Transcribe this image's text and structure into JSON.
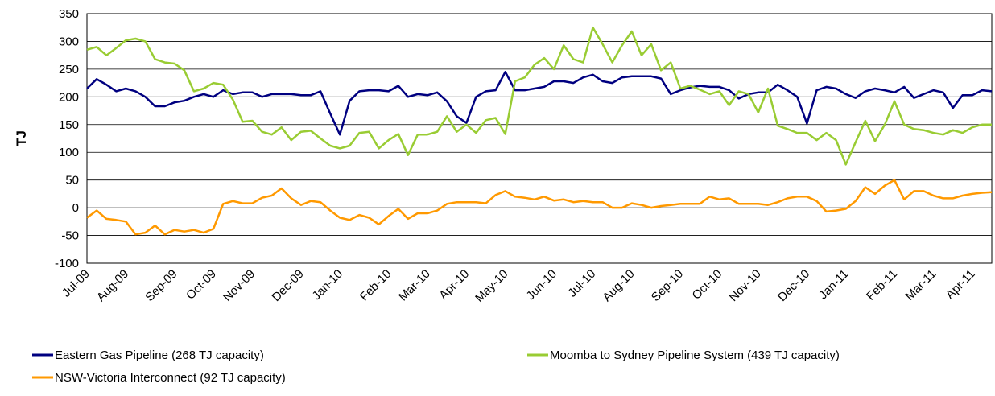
{
  "chart_data": {
    "type": "line",
    "ylabel": "TJ",
    "categories": [
      "Jul-09",
      null,
      null,
      null,
      "Aug-09",
      null,
      null,
      null,
      null,
      "Sep-09",
      null,
      null,
      null,
      "Oct-09",
      null,
      null,
      null,
      "Nov-09",
      null,
      null,
      null,
      null,
      "Dec-09",
      null,
      null,
      null,
      "Jan-10",
      null,
      null,
      null,
      null,
      "Feb-10",
      null,
      null,
      null,
      "Mar-10",
      null,
      null,
      null,
      "Apr-10",
      null,
      null,
      null,
      "May-10",
      null,
      null,
      null,
      null,
      "Jun-10",
      null,
      null,
      null,
      "Jul-10",
      null,
      null,
      null,
      "Aug-10",
      null,
      null,
      null,
      null,
      "Sep-10",
      null,
      null,
      null,
      "Oct-10",
      null,
      null,
      null,
      "Nov-10",
      null,
      null,
      null,
      null,
      "Dec-10",
      null,
      null,
      null,
      "Jan-11",
      null,
      null,
      null,
      null,
      "Feb-11",
      null,
      null,
      null,
      "Mar-11",
      null,
      null,
      null,
      "Apr-11",
      null,
      null
    ],
    "series": [
      {
        "name": "Eastern Gas Pipeline (268 TJ capacity)",
        "color": "#000080",
        "values": [
          215,
          232,
          222,
          210,
          215,
          210,
          200,
          183,
          183,
          190,
          193,
          200,
          205,
          200,
          212,
          205,
          208,
          208,
          200,
          205,
          205,
          205,
          203,
          203,
          210,
          170,
          132,
          193,
          210,
          212,
          212,
          210,
          220,
          200,
          205,
          203,
          208,
          192,
          165,
          153,
          200,
          210,
          212,
          245,
          212,
          212,
          215,
          218,
          228,
          228,
          225,
          235,
          240,
          228,
          225,
          235,
          237,
          237,
          237,
          233,
          205,
          212,
          217,
          220,
          218,
          218,
          212,
          197,
          205,
          208,
          208,
          222,
          212,
          200,
          152,
          212,
          218,
          215,
          205,
          198,
          210,
          215,
          212,
          208,
          218,
          198,
          205,
          212,
          208,
          180,
          203,
          203,
          212,
          210
        ]
      },
      {
        "name": "Moomba to Sydney Pipeline System (439 TJ capacity)",
        "color": "#99cc33",
        "values": [
          285,
          290,
          275,
          288,
          302,
          305,
          300,
          268,
          262,
          260,
          248,
          210,
          215,
          225,
          222,
          195,
          155,
          157,
          137,
          132,
          145,
          122,
          137,
          139,
          125,
          112,
          107,
          112,
          135,
          137,
          107,
          122,
          133,
          95,
          132,
          132,
          137,
          165,
          137,
          150,
          135,
          158,
          162,
          133,
          228,
          235,
          258,
          270,
          250,
          293,
          268,
          262,
          325,
          295,
          262,
          293,
          318,
          275,
          295,
          248,
          262,
          215,
          220,
          213,
          205,
          210,
          185,
          210,
          205,
          172,
          215,
          148,
          142,
          135,
          135,
          122,
          135,
          122,
          78,
          118,
          157,
          120,
          150,
          192,
          150,
          142,
          140,
          135,
          132,
          140,
          135,
          145,
          150,
          150
        ]
      },
      {
        "name": "NSW-Victoria Interconnect (92 TJ capacity)",
        "color": "#ff9900",
        "values": [
          -18,
          -5,
          -20,
          -22,
          -25,
          -48,
          -45,
          -32,
          -48,
          -40,
          -43,
          -40,
          -45,
          -38,
          7,
          12,
          8,
          8,
          18,
          22,
          35,
          17,
          5,
          12,
          10,
          -5,
          -18,
          -22,
          -13,
          -18,
          -30,
          -15,
          -2,
          -20,
          -10,
          -10,
          -5,
          7,
          10,
          10,
          10,
          8,
          23,
          30,
          20,
          18,
          15,
          20,
          13,
          15,
          10,
          12,
          10,
          10,
          0,
          0,
          8,
          5,
          0,
          3,
          5,
          7,
          7,
          7,
          20,
          15,
          17,
          7,
          7,
          7,
          5,
          10,
          17,
          20,
          20,
          12,
          -7,
          -5,
          -2,
          12,
          37,
          25,
          40,
          50,
          15,
          30,
          30,
          22,
          17,
          17,
          22,
          25,
          27,
          28
        ]
      }
    ],
    "ylim": [
      -100,
      350
    ],
    "yticks": [
      -100,
      -50,
      0,
      50,
      100,
      150,
      200,
      250,
      300,
      350
    ],
    "grid": true,
    "legend": "bottom"
  }
}
